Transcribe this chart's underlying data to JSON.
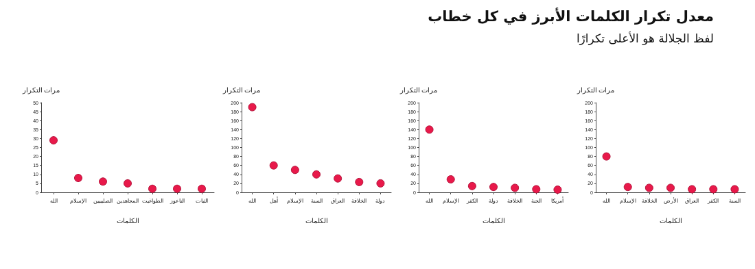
{
  "chart_data": [
    {
      "type": "other",
      "title": "معدل تكرار الكلمات الأبرز في كل خطاب",
      "subtitle": "لفظ الجلالة هو الأعلى تكرارًا"
    },
    {
      "type": "scatter",
      "xlabel": "الكلمات",
      "ylabel": "مرات التكرار",
      "categories": [
        "الله",
        "الإسلام",
        "الخلافة",
        "الأرض",
        "العراق",
        "الكفر",
        "السنة"
      ],
      "values": [
        80,
        12,
        10,
        10,
        7,
        7,
        7
      ],
      "color": "#e8194a",
      "ylim": [
        0,
        200
      ],
      "yticks": [
        0,
        20,
        40,
        60,
        80,
        100,
        120,
        140,
        160,
        180,
        200
      ],
      "grid": false,
      "marker": "circle"
    },
    {
      "type": "scatter",
      "xlabel": "الكلمات",
      "ylabel": "مرات التكرار",
      "categories": [
        "الله",
        "الإسلام",
        "الكفر",
        "دولة",
        "الخلافة",
        "الجنة",
        "أمريكا"
      ],
      "values": [
        140,
        29,
        14,
        12,
        10,
        7,
        6
      ],
      "color": "#e8194a",
      "ylim": [
        0,
        200
      ],
      "yticks": [
        0,
        20,
        40,
        60,
        80,
        100,
        120,
        140,
        160,
        180,
        200
      ],
      "grid": false,
      "marker": "circle"
    },
    {
      "type": "scatter",
      "xlabel": "الكلمات",
      "ylabel": "مرات التكرار",
      "categories": [
        "الله",
        "أهل",
        "الإسلام",
        "السنة",
        "العراق",
        "الخلافة",
        "دولة"
      ],
      "values": [
        190,
        60,
        50,
        40,
        31,
        23,
        20
      ],
      "color": "#e8194a",
      "ylim": [
        0,
        200
      ],
      "yticks": [
        0,
        20,
        40,
        60,
        80,
        100,
        120,
        140,
        160,
        180,
        200
      ],
      "grid": false,
      "marker": "circle"
    },
    {
      "type": "scatter",
      "xlabel": "الكلمات",
      "ylabel": "مرات التكرار",
      "categories": [
        "الله",
        "الإسلام",
        "الصليبيين",
        "المجاهدين",
        "الطواغيت",
        "الناعوز",
        "الثبات"
      ],
      "values": [
        29,
        8,
        6,
        5,
        2,
        2,
        2
      ],
      "color": "#e8194a",
      "ylim": [
        0,
        50
      ],
      "yticks": [
        0,
        5,
        10,
        15,
        20,
        25,
        30,
        35,
        40,
        45,
        50
      ],
      "grid": false,
      "marker": "circle"
    }
  ]
}
